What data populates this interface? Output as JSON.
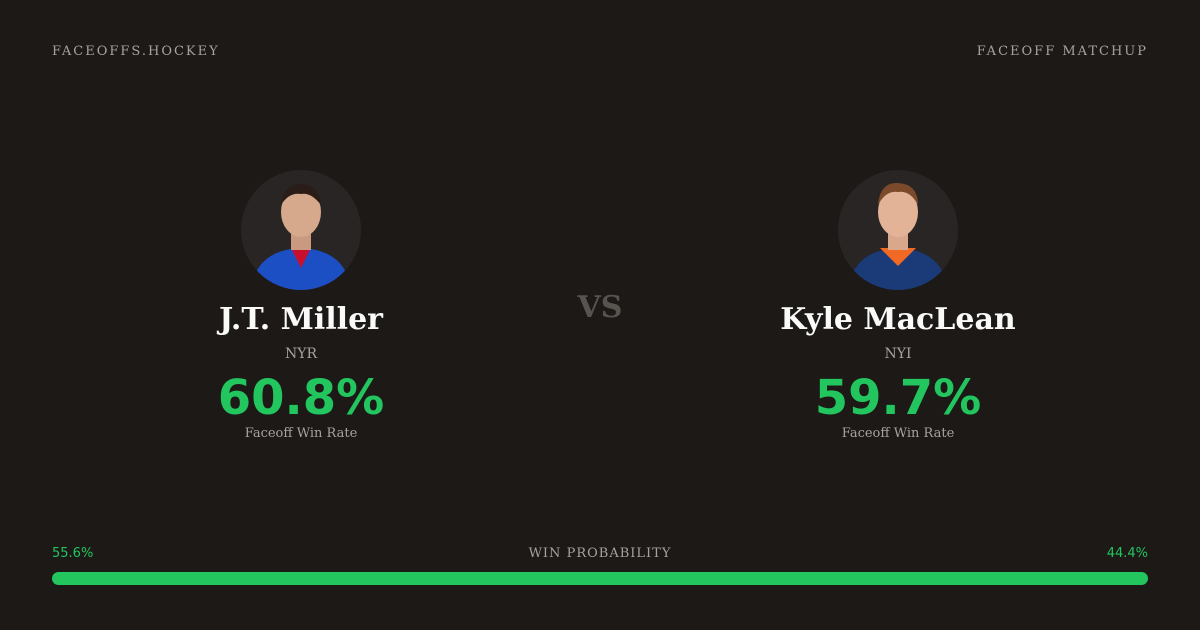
{
  "header": {
    "brand": "FACEOFFS.HOCKEY",
    "label": "FACEOFF MATCHUP"
  },
  "players": [
    {
      "name": "J.T. Miller",
      "team": "NYR",
      "rate": "60.8%",
      "rate_label": "Faceoff Win Rate"
    },
    {
      "name": "Kyle MacLean",
      "team": "NYI",
      "rate": "59.7%",
      "rate_label": "Faceoff Win Rate"
    }
  ],
  "vs": "VS",
  "win_probability": {
    "label": "WIN PROBABILITY",
    "left": "55.6%",
    "right": "44.4%"
  }
}
